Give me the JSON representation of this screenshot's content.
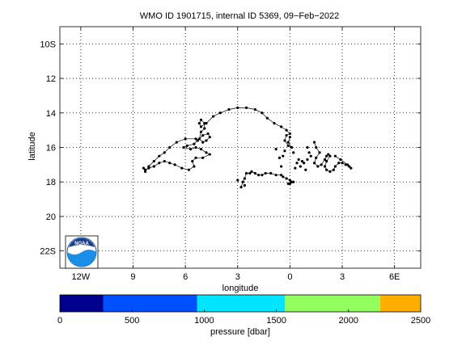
{
  "chart_data": {
    "type": "line",
    "title": "WMO ID 1901715, internal ID 5369, 09−Feb−2022",
    "xlabel": "longitude",
    "ylabel": "latitude",
    "xlim": [
      -13.2,
      7.5
    ],
    "ylim": [
      -23.0,
      -9.0
    ],
    "grid": true,
    "x_ticks": [
      {
        "value": -12,
        "label": "12W"
      },
      {
        "value": -9,
        "label": "9"
      },
      {
        "value": -6,
        "label": "6"
      },
      {
        "value": -3,
        "label": "3"
      },
      {
        "value": 0,
        "label": "0"
      },
      {
        "value": 3,
        "label": "3"
      },
      {
        "value": 6,
        "label": "6E"
      }
    ],
    "y_ticks": [
      {
        "value": -10,
        "label": "10S"
      },
      {
        "value": -12,
        "label": "12"
      },
      {
        "value": -14,
        "label": "14"
      },
      {
        "value": -16,
        "label": "16"
      },
      {
        "value": -18,
        "label": "18"
      },
      {
        "value": -20,
        "label": "20"
      },
      {
        "value": -22,
        "label": "22S"
      }
    ],
    "series": [
      {
        "color": "#000000",
        "points": [
          [
            -8.3,
            -17.4
          ],
          [
            -8.1,
            -17.1
          ],
          [
            -7.8,
            -16.8
          ],
          [
            -7.5,
            -16.5
          ],
          [
            -7.2,
            -16.3
          ],
          [
            -6.9,
            -16.0
          ],
          [
            -6.5,
            -15.7
          ],
          [
            -6.0,
            -15.5
          ],
          [
            -5.4,
            -15.5
          ],
          [
            -5.3,
            -15.6
          ],
          [
            -5.5,
            -15.8
          ],
          [
            -5.9,
            -15.9
          ],
          [
            -6.1,
            -16.0
          ],
          [
            -5.7,
            -16.1
          ],
          [
            -5.4,
            -16.0
          ],
          [
            -5.1,
            -16.1
          ],
          [
            -4.8,
            -16.3
          ],
          [
            -4.6,
            -16.4
          ],
          [
            -5.0,
            -16.6
          ],
          [
            -5.4,
            -16.6
          ],
          [
            -5.6,
            -16.8
          ],
          [
            -5.5,
            -17.1
          ],
          [
            -5.8,
            -17.3
          ],
          [
            -6.2,
            -17.2
          ],
          [
            -6.6,
            -17.0
          ],
          [
            -6.9,
            -16.9
          ],
          [
            -7.2,
            -16.8
          ],
          [
            -7.5,
            -16.9
          ],
          [
            -7.8,
            -17.1
          ],
          [
            -8.1,
            -17.2
          ],
          [
            -8.3,
            -17.3
          ],
          [
            -8.4,
            -17.2
          ]
        ]
      },
      {
        "color": "#000000",
        "points": [
          [
            -5.3,
            -15.6
          ],
          [
            -5.0,
            -15.3
          ],
          [
            -4.7,
            -15.2
          ],
          [
            -4.6,
            -15.4
          ],
          [
            -4.8,
            -15.6
          ],
          [
            -5.0,
            -15.7
          ],
          [
            -5.2,
            -15.5
          ],
          [
            -5.1,
            -15.1
          ],
          [
            -4.9,
            -14.9
          ],
          [
            -4.9,
            -14.6
          ],
          [
            -5.1,
            -14.4
          ],
          [
            -5.2,
            -14.6
          ],
          [
            -5.1,
            -14.8
          ],
          [
            -4.8,
            -14.6
          ],
          [
            -4.4,
            -14.2
          ],
          [
            -4.0,
            -14.0
          ],
          [
            -3.5,
            -13.8
          ],
          [
            -3.0,
            -13.7
          ],
          [
            -2.5,
            -13.7
          ],
          [
            -2.0,
            -13.8
          ],
          [
            -1.6,
            -14.0
          ],
          [
            -1.3,
            -14.3
          ],
          [
            -0.9,
            -14.6
          ],
          [
            -0.5,
            -14.8
          ],
          [
            -0.2,
            -15.0
          ],
          [
            0.0,
            -15.2
          ],
          [
            -0.2,
            -15.3
          ],
          [
            -0.3,
            -15.6
          ],
          [
            -0.1,
            -15.9
          ],
          [
            0.1,
            -16.0
          ],
          [
            -0.1,
            -15.7
          ],
          [
            0.0,
            -15.4
          ]
        ]
      },
      {
        "color": "#000000",
        "points": [
          [
            -2.8,
            -18.3
          ],
          [
            -2.7,
            -18.0
          ],
          [
            -2.6,
            -17.8
          ],
          [
            -2.5,
            -17.5
          ],
          [
            -2.3,
            -17.5
          ],
          [
            -2.2,
            -17.4
          ],
          [
            -2.0,
            -17.5
          ],
          [
            -1.8,
            -17.6
          ],
          [
            -1.6,
            -17.6
          ],
          [
            -1.4,
            -17.5
          ],
          [
            -1.1,
            -17.5
          ],
          [
            -0.8,
            -17.6
          ],
          [
            -0.5,
            -17.6
          ],
          [
            -0.4,
            -17.7
          ],
          [
            -0.2,
            -17.8
          ],
          [
            0.0,
            -17.9
          ],
          [
            0.1,
            -18.0
          ],
          [
            -0.1,
            -18.1
          ],
          [
            0.2,
            -18.0
          ]
        ]
      },
      {
        "color": "#000000",
        "points": [
          [
            1.4,
            -15.7
          ],
          [
            1.5,
            -16.0
          ],
          [
            1.7,
            -16.3
          ],
          [
            1.5,
            -16.6
          ],
          [
            1.4,
            -16.9
          ],
          [
            1.6,
            -17.1
          ],
          [
            1.8,
            -17.0
          ],
          [
            2.0,
            -16.7
          ],
          [
            2.1,
            -16.5
          ],
          [
            2.2,
            -16.4
          ],
          [
            2.3,
            -16.5
          ],
          [
            2.1,
            -16.8
          ],
          [
            2.0,
            -17.1
          ],
          [
            2.1,
            -17.3
          ],
          [
            2.3,
            -17.4
          ],
          [
            2.5,
            -17.3
          ],
          [
            2.6,
            -17.1
          ],
          [
            2.8,
            -16.9
          ],
          [
            3.0,
            -16.9
          ],
          [
            3.2,
            -17.0
          ],
          [
            3.4,
            -17.1
          ],
          [
            3.5,
            -17.2
          ],
          [
            3.3,
            -17.0
          ],
          [
            2.9,
            -16.7
          ],
          [
            2.6,
            -16.5
          ]
        ]
      }
    ],
    "scatter_points": [
      [
        -3.0,
        -17.9
      ],
      [
        -2.6,
        -18.2
      ],
      [
        -0.8,
        -16.1
      ],
      [
        -0.6,
        -16.6
      ],
      [
        -0.4,
        -16.5
      ],
      [
        -0.3,
        -16.2
      ],
      [
        0.2,
        -16.3
      ],
      [
        0.4,
        -16.9
      ],
      [
        0.5,
        -16.7
      ],
      [
        0.7,
        -16.8
      ],
      [
        0.6,
        -17.1
      ],
      [
        0.9,
        -17.3
      ],
      [
        0.3,
        -17.2
      ],
      [
        -0.5,
        -17.1
      ],
      [
        0.0,
        -18.1
      ],
      [
        1.0,
        -16.7
      ],
      [
        1.1,
        -16.3
      ],
      [
        1.2,
        -16.5
      ],
      [
        0.8,
        -16.9
      ],
      [
        1.0,
        -16.0
      ]
    ],
    "colorbar": {
      "label": "pressure [dbar]",
      "range": [
        0,
        2500
      ],
      "ticks": [
        0,
        500,
        1000,
        1500,
        2000,
        2500
      ],
      "segments": [
        {
          "from": 0,
          "to": 300,
          "color": "#00008f"
        },
        {
          "from": 300,
          "to": 950,
          "color": "#0050ff"
        },
        {
          "from": 950,
          "to": 1560,
          "color": "#00e4ff"
        },
        {
          "from": 1560,
          "to": 2220,
          "color": "#93ff5f"
        },
        {
          "from": 2220,
          "to": 2500,
          "color": "#ffae00"
        }
      ]
    },
    "logo": {
      "text": "NOAA",
      "color": "#1a5aa8"
    }
  }
}
